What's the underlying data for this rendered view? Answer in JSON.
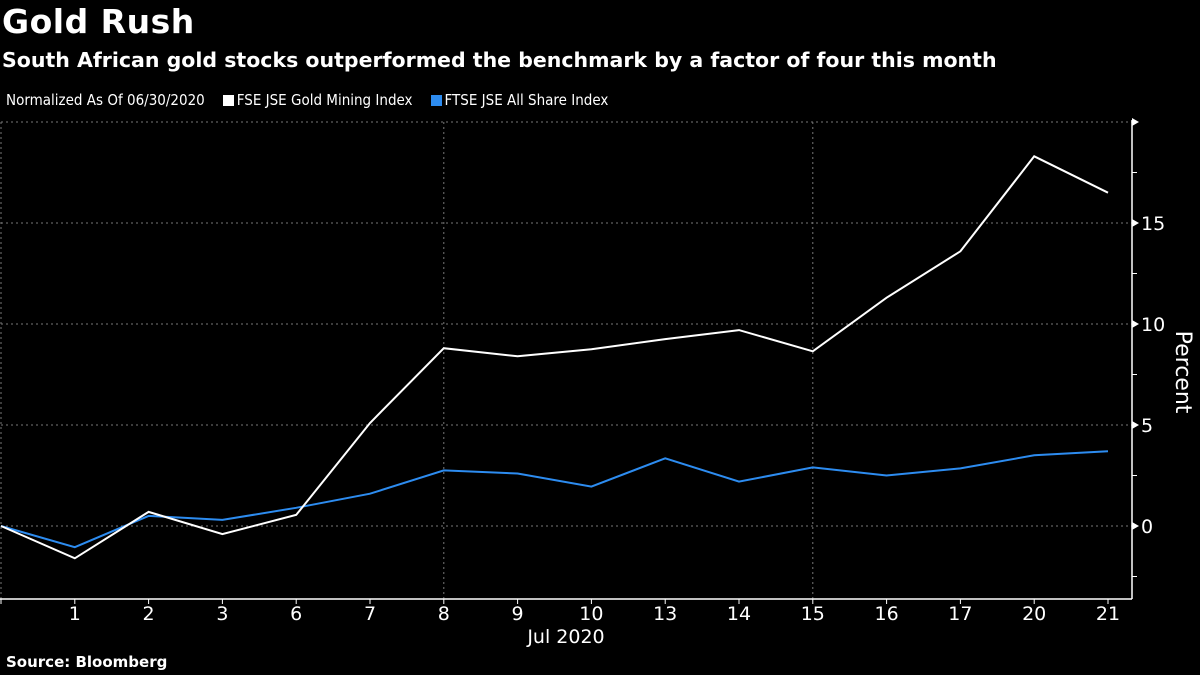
{
  "header": {
    "title": "Gold Rush",
    "subtitle": "South African gold stocks outperformed the benchmark by a factor of four this month"
  },
  "legend": {
    "note": "Normalized As Of 06/30/2020",
    "items": [
      {
        "label": "FSE JSE Gold Mining Index",
        "color": "#ffffff"
      },
      {
        "label": "FTSE JSE All Share Index",
        "color": "#2d8cf0"
      }
    ]
  },
  "footer": {
    "source": "Source: Bloomberg"
  },
  "chart_data": {
    "type": "line",
    "title": "Gold Rush",
    "subtitle": "South African gold stocks outperformed the benchmark by a factor of four this month",
    "xlabel": "Jul 2020",
    "ylabel": "Percent",
    "categories": [
      "Jun 30",
      "1",
      "2",
      "3",
      "6",
      "7",
      "8",
      "9",
      "10",
      "13",
      "14",
      "15",
      "16",
      "17",
      "20",
      "21"
    ],
    "x_tick_labels": [
      "",
      "1",
      "2",
      "3",
      "6",
      "7",
      "8",
      "9",
      "10",
      "13",
      "14",
      "15",
      "16",
      "17",
      "20",
      "21"
    ],
    "series": [
      {
        "name": "FSE JSE Gold Mining Index",
        "color": "#ffffff",
        "values": [
          0,
          -1.6,
          0.7,
          -0.4,
          0.55,
          5.1,
          8.8,
          8.4,
          8.75,
          9.25,
          9.7,
          8.65,
          11.3,
          13.6,
          18.3,
          16.5
        ]
      },
      {
        "name": "FTSE JSE All Share Index",
        "color": "#2d8cf0",
        "values": [
          0,
          -1.05,
          0.5,
          0.3,
          0.9,
          1.6,
          2.75,
          2.6,
          1.95,
          3.35,
          2.2,
          2.9,
          2.5,
          2.85,
          3.5,
          3.7
        ]
      }
    ],
    "y_ticks": [
      0,
      5,
      10,
      15
    ],
    "ylim": [
      -3.6,
      20
    ],
    "y_axis_position": "right",
    "grid": true,
    "vertical_gridlines_at": [
      "Jun 30",
      "8",
      "15"
    ],
    "legend_position": "top-left"
  }
}
